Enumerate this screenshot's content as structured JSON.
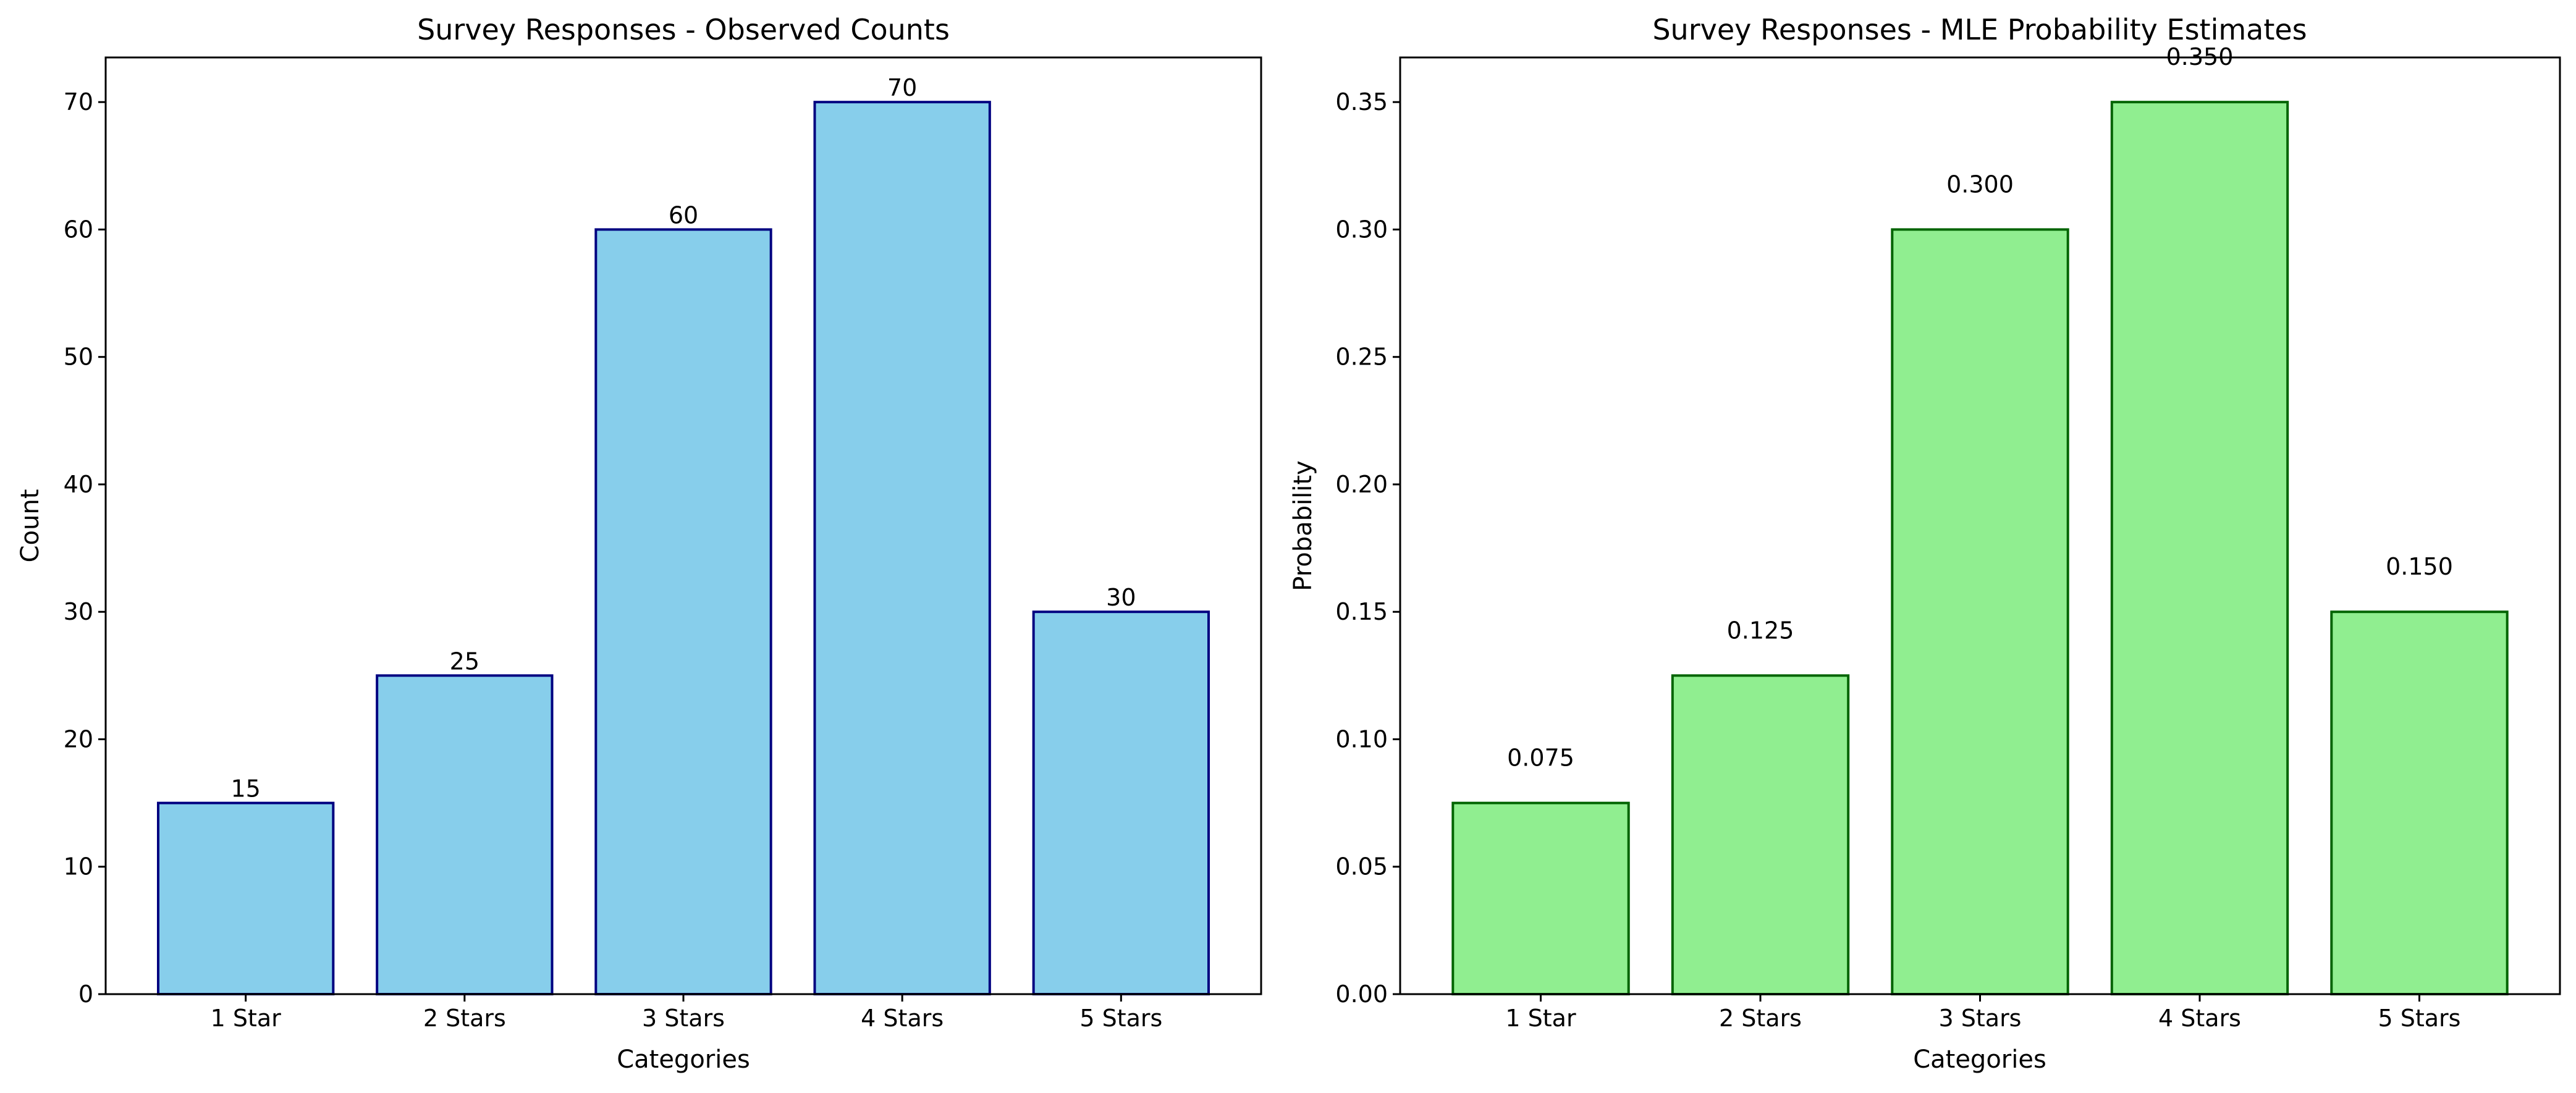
{
  "chart_data": [
    {
      "type": "bar",
      "title": "Survey Responses - Observed Counts",
      "xlabel": "Categories",
      "ylabel": "Count",
      "categories": [
        "1 Star",
        "2 Stars",
        "3 Stars",
        "4 Stars",
        "5 Stars"
      ],
      "values": [
        15,
        25,
        60,
        70,
        30
      ],
      "value_labels": [
        "15",
        "25",
        "60",
        "70",
        "30"
      ],
      "ylim": [
        0,
        73.5
      ],
      "yticks": [
        0,
        10,
        20,
        30,
        40,
        50,
        60,
        70
      ],
      "ytick_labels": [
        "0",
        "10",
        "20",
        "30",
        "40",
        "50",
        "60",
        "70"
      ],
      "bar_color": "#87ceeb",
      "edge_color": "#000080",
      "grid": false
    },
    {
      "type": "bar",
      "title": "Survey Responses - MLE Probability Estimates",
      "xlabel": "Categories",
      "ylabel": "Probability",
      "categories": [
        "1 Star",
        "2 Stars",
        "3 Stars",
        "4 Stars",
        "5 Stars"
      ],
      "values": [
        0.075,
        0.125,
        0.3,
        0.35,
        0.15
      ],
      "value_labels": [
        "0.075",
        "0.125",
        "0.300",
        "0.350",
        "0.150"
      ],
      "ylim": [
        0,
        0.3675
      ],
      "yticks": [
        0,
        0.05,
        0.1,
        0.15,
        0.2,
        0.25,
        0.3,
        0.35
      ],
      "ytick_labels": [
        "0.00",
        "0.05",
        "0.10",
        "0.15",
        "0.20",
        "0.25",
        "0.30",
        "0.35"
      ],
      "bar_color": "#90ee90",
      "edge_color": "#006400",
      "grid": false
    }
  ]
}
